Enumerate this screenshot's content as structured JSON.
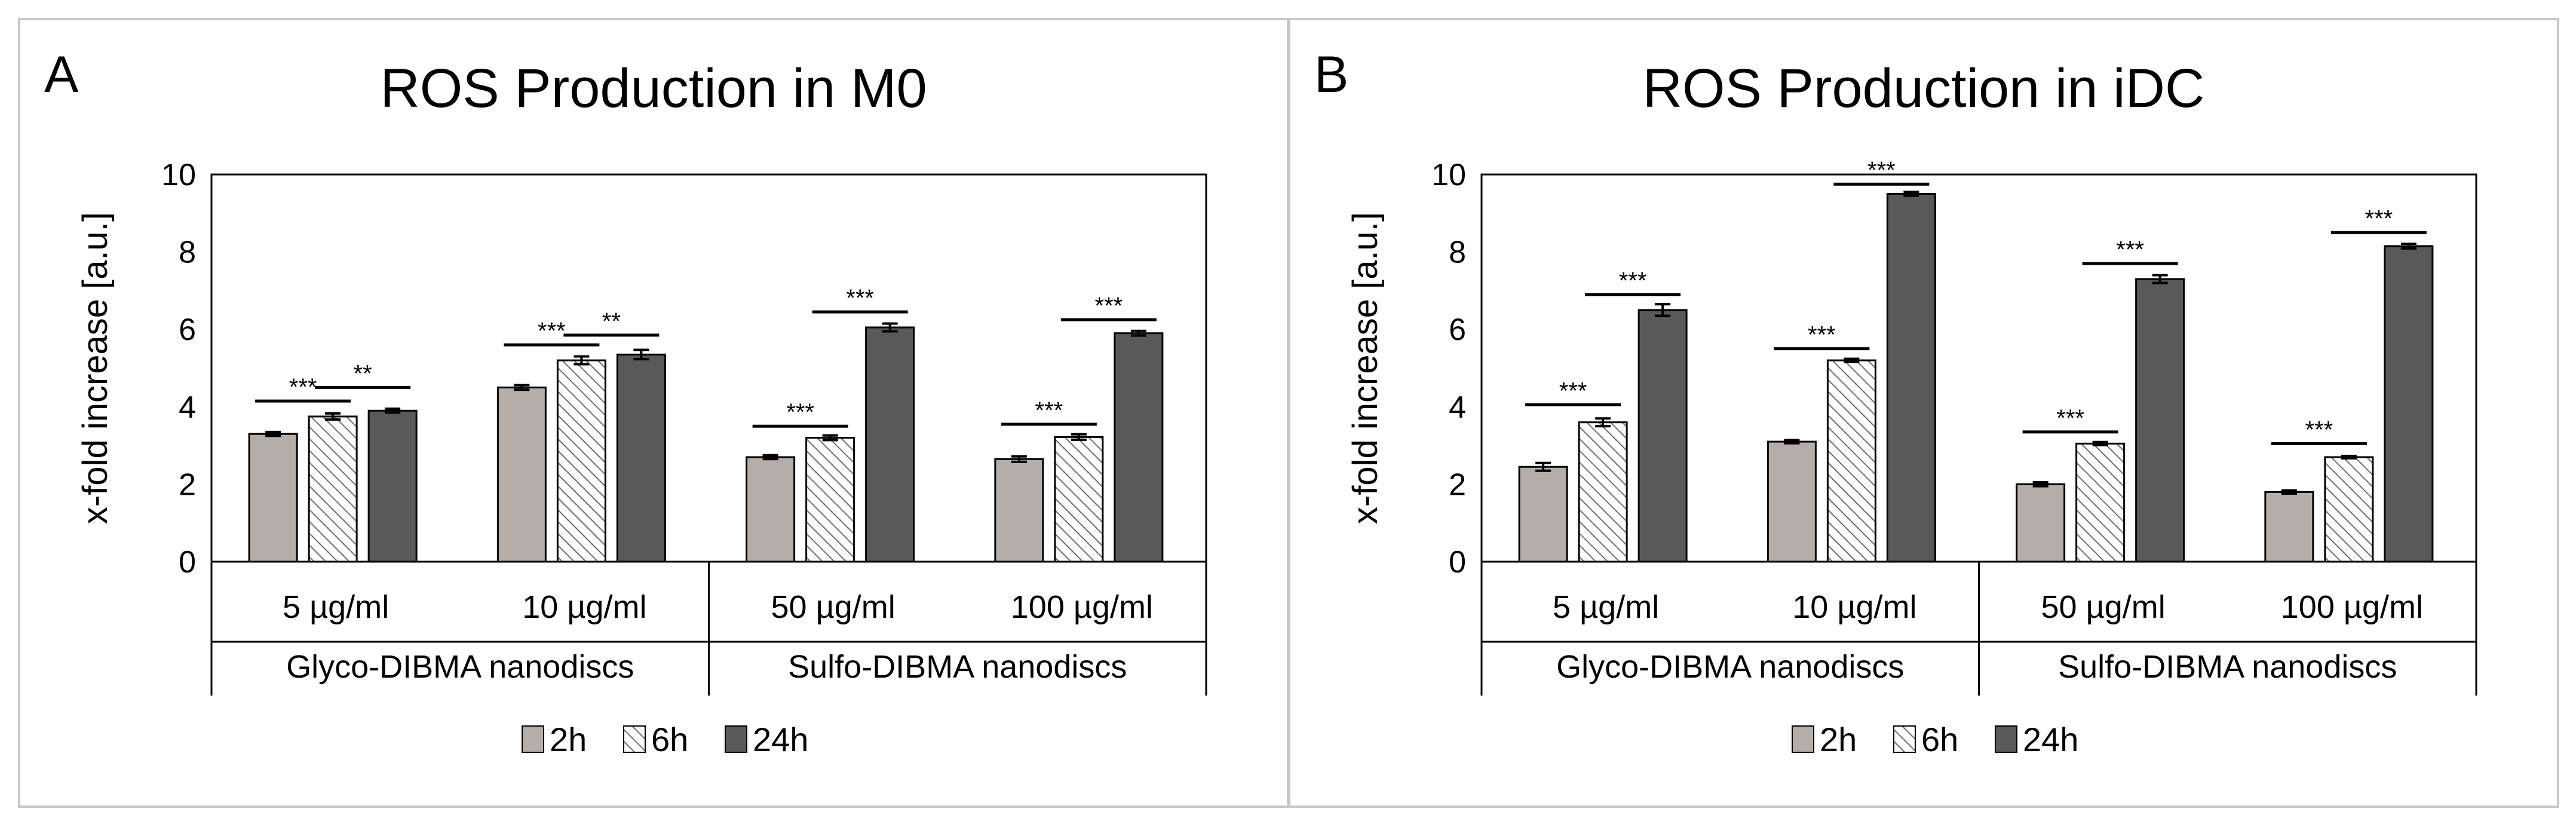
{
  "chart_data": [
    {
      "panel_letter": "A",
      "type": "bar",
      "title": "ROS Production in M0",
      "ylabel": "x-fold increase [a.u.]",
      "ylim": [
        0,
        10
      ],
      "yticks": [
        0,
        2,
        4,
        6,
        8,
        10
      ],
      "categories": [
        "5 µg/ml",
        "10 µg/ml",
        "50 µg/ml",
        "100 µg/ml"
      ],
      "groups": [
        "Glyco-DIBMA nanodiscs",
        "Sulfo-DIBMA nanodiscs"
      ],
      "series": [
        {
          "name": "2h",
          "values": [
            3.3,
            4.5,
            2.7,
            2.65
          ],
          "errors": [
            0.05,
            0.06,
            0.05,
            0.07
          ],
          "color": "#b5adaa",
          "pattern": "solid"
        },
        {
          "name": "6h",
          "values": [
            3.75,
            5.2,
            3.2,
            3.22
          ],
          "errors": [
            0.08,
            0.1,
            0.06,
            0.07
          ],
          "color": "#ffffff",
          "pattern": "hatch"
        },
        {
          "name": "24h",
          "values": [
            3.9,
            5.35,
            6.05,
            5.9
          ],
          "errors": [
            0.05,
            0.12,
            0.1,
            0.06
          ],
          "color": "#595959",
          "pattern": "solid"
        }
      ],
      "significance": [
        {
          "category": 0,
          "from": "2h",
          "to": "6h",
          "label": "***",
          "y": 4.15
        },
        {
          "category": 0,
          "from": "6h",
          "to": "24h",
          "label": "**",
          "y": 4.5
        },
        {
          "category": 1,
          "from": "2h",
          "to": "6h",
          "label": "***",
          "y": 5.6
        },
        {
          "category": 1,
          "from": "6h",
          "to": "24h",
          "label": "**",
          "y": 5.85
        },
        {
          "category": 2,
          "from": "2h",
          "to": "6h",
          "label": "***",
          "y": 3.5
        },
        {
          "category": 2,
          "from": "6h",
          "to": "24h",
          "label": "***",
          "y": 6.45
        },
        {
          "category": 3,
          "from": "2h",
          "to": "6h",
          "label": "***",
          "y": 3.55
        },
        {
          "category": 3,
          "from": "6h",
          "to": "24h",
          "label": "***",
          "y": 6.25
        }
      ],
      "legend": [
        "2h",
        "6h",
        "24h"
      ],
      "legend_position": "bottom"
    },
    {
      "panel_letter": "B",
      "type": "bar",
      "title": "ROS Production in iDC",
      "ylabel": "x-fold increase [a.u.]",
      "ylim": [
        0,
        10
      ],
      "yticks": [
        0,
        2,
        4,
        6,
        8,
        10
      ],
      "categories": [
        "5 µg/ml",
        "10 µg/ml",
        "50 µg/ml",
        "100 µg/ml"
      ],
      "groups": [
        "Glyco-DIBMA nanodiscs",
        "Sulfo-DIBMA nanodiscs"
      ],
      "series": [
        {
          "name": "2h",
          "values": [
            2.45,
            3.1,
            2.0,
            1.8
          ],
          "errors": [
            0.1,
            0.04,
            0.05,
            0.04
          ],
          "color": "#b5adaa",
          "pattern": "solid"
        },
        {
          "name": "6h",
          "values": [
            3.6,
            5.2,
            3.05,
            2.7
          ],
          "errors": [
            0.1,
            0.04,
            0.04,
            0.03
          ],
          "color": "#ffffff",
          "pattern": "hatch"
        },
        {
          "name": "24h",
          "values": [
            6.5,
            9.5,
            7.3,
            8.15
          ],
          "errors": [
            0.15,
            0.05,
            0.1,
            0.06
          ],
          "color": "#595959",
          "pattern": "solid"
        }
      ],
      "significance": [
        {
          "category": 0,
          "from": "2h",
          "to": "6h",
          "label": "***",
          "y": 4.05
        },
        {
          "category": 0,
          "from": "6h",
          "to": "24h",
          "label": "***",
          "y": 6.9
        },
        {
          "category": 1,
          "from": "2h",
          "to": "6h",
          "label": "***",
          "y": 5.5
        },
        {
          "category": 1,
          "from": "6h",
          "to": "24h",
          "label": "***",
          "y": 9.75
        },
        {
          "category": 2,
          "from": "2h",
          "to": "6h",
          "label": "***",
          "y": 3.35
        },
        {
          "category": 2,
          "from": "6h",
          "to": "24h",
          "label": "***",
          "y": 7.7
        },
        {
          "category": 3,
          "from": "2h",
          "to": "6h",
          "label": "***",
          "y": 3.05
        },
        {
          "category": 3,
          "from": "6h",
          "to": "24h",
          "label": "***",
          "y": 8.5
        }
      ],
      "legend": [
        "2h",
        "6h",
        "24h"
      ],
      "legend_position": "bottom"
    }
  ]
}
